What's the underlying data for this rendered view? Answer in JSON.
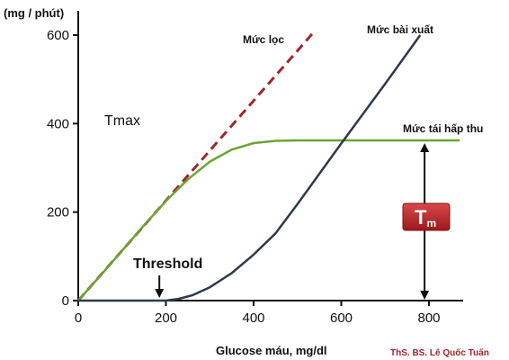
{
  "chart_data": {
    "type": "line",
    "ylabel": "(mg / phút)",
    "xlabel": "Glucose máu, mg/dl",
    "credit": "ThS. BS. Lê Quốc Tuấn",
    "xlim": [
      0,
      860
    ],
    "ylim": [
      0,
      620
    ],
    "x_ticks": [
      0,
      200,
      400,
      600,
      800
    ],
    "y_ticks": [
      0,
      200,
      400,
      600
    ],
    "grid": false,
    "series": [
      {
        "name": "Mức lọc",
        "style": "dashed",
        "color": "#a0252a",
        "points": [
          [
            0,
            0
          ],
          [
            540,
            610
          ]
        ]
      },
      {
        "name": "Mức tái hấp thu",
        "style": "solid",
        "color": "#6aa534",
        "points": [
          [
            0,
            0
          ],
          [
            50,
            56
          ],
          [
            100,
            113
          ],
          [
            150,
            170
          ],
          [
            200,
            225
          ],
          [
            250,
            274
          ],
          [
            300,
            314
          ],
          [
            350,
            341
          ],
          [
            400,
            356
          ],
          [
            450,
            361
          ],
          [
            500,
            362
          ],
          [
            600,
            362
          ],
          [
            700,
            362
          ],
          [
            870,
            362
          ]
        ]
      },
      {
        "name": "Mức bài xuất",
        "style": "solid",
        "color": "#2e3a4a",
        "points": [
          [
            0,
            0
          ],
          [
            200,
            0
          ],
          [
            230,
            4
          ],
          [
            260,
            12
          ],
          [
            300,
            30
          ],
          [
            350,
            62
          ],
          [
            400,
            104
          ],
          [
            450,
            152
          ],
          [
            500,
            218
          ],
          [
            600,
            355
          ],
          [
            700,
            490
          ],
          [
            780,
            600
          ]
        ]
      }
    ],
    "annotations": {
      "tmax": "Tmax",
      "threshold": "Threshold",
      "threshold_x": 185,
      "tm_main": "T",
      "tm_sub": "m",
      "tm_x": 790,
      "tm_y_range": [
        0,
        362
      ]
    }
  }
}
